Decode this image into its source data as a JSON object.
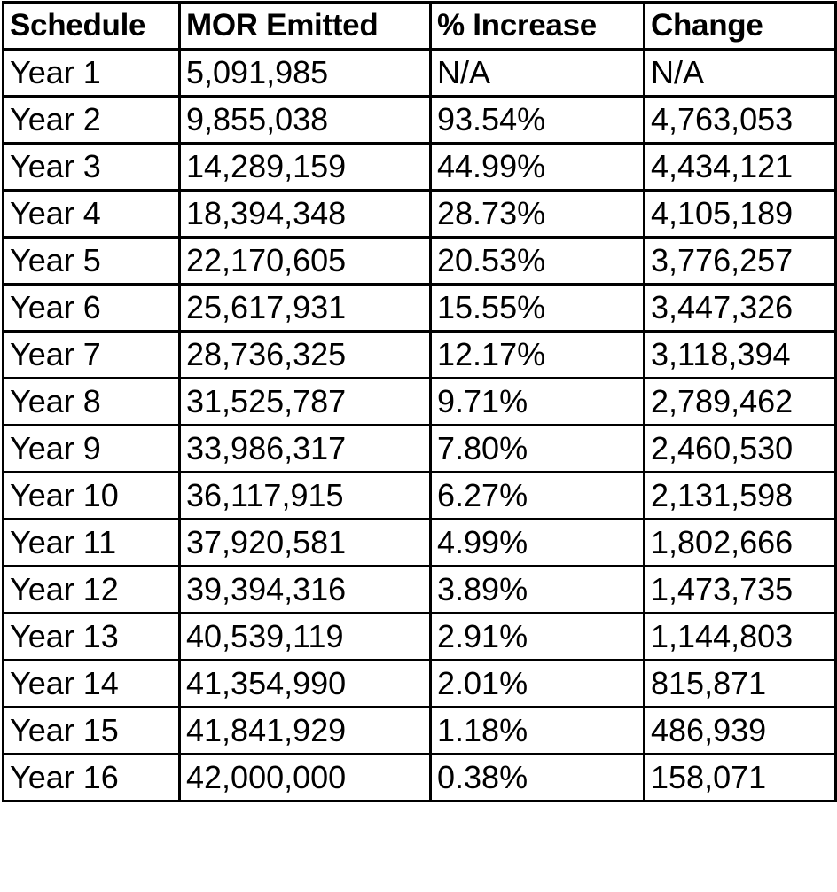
{
  "table": {
    "headers": [
      "Schedule",
      "MOR Emitted",
      "% Increase",
      "Change"
    ],
    "rows": [
      [
        "Year 1",
        "5,091,985",
        "N/A",
        "N/A"
      ],
      [
        "Year 2",
        "9,855,038",
        "93.54%",
        "4,763,053"
      ],
      [
        "Year 3",
        "14,289,159",
        "44.99%",
        "4,434,121"
      ],
      [
        "Year 4",
        "18,394,348",
        "28.73%",
        "4,105,189"
      ],
      [
        "Year 5",
        "22,170,605",
        "20.53%",
        "3,776,257"
      ],
      [
        "Year 6",
        "25,617,931",
        "15.55%",
        "3,447,326"
      ],
      [
        "Year 7",
        "28,736,325",
        "12.17%",
        "3,118,394"
      ],
      [
        "Year 8",
        "31,525,787",
        "9.71%",
        "2,789,462"
      ],
      [
        "Year 9",
        "33,986,317",
        "7.80%",
        "2,460,530"
      ],
      [
        "Year 10",
        "36,117,915",
        "6.27%",
        "2,131,598"
      ],
      [
        "Year 11",
        "37,920,581",
        "4.99%",
        "1,802,666"
      ],
      [
        "Year 12",
        "39,394,316",
        "3.89%",
        "1,473,735"
      ],
      [
        "Year 13",
        "40,539,119",
        "2.91%",
        "1,144,803"
      ],
      [
        "Year 14",
        "41,354,990",
        "2.01%",
        "815,871"
      ],
      [
        "Year 15",
        "41,841,929",
        "1.18%",
        "486,939"
      ],
      [
        "Year 16",
        "42,000,000",
        "0.38%",
        "158,071"
      ]
    ]
  },
  "colors": {
    "text": "#000000",
    "border": "#000000",
    "background": "#ffffff"
  }
}
